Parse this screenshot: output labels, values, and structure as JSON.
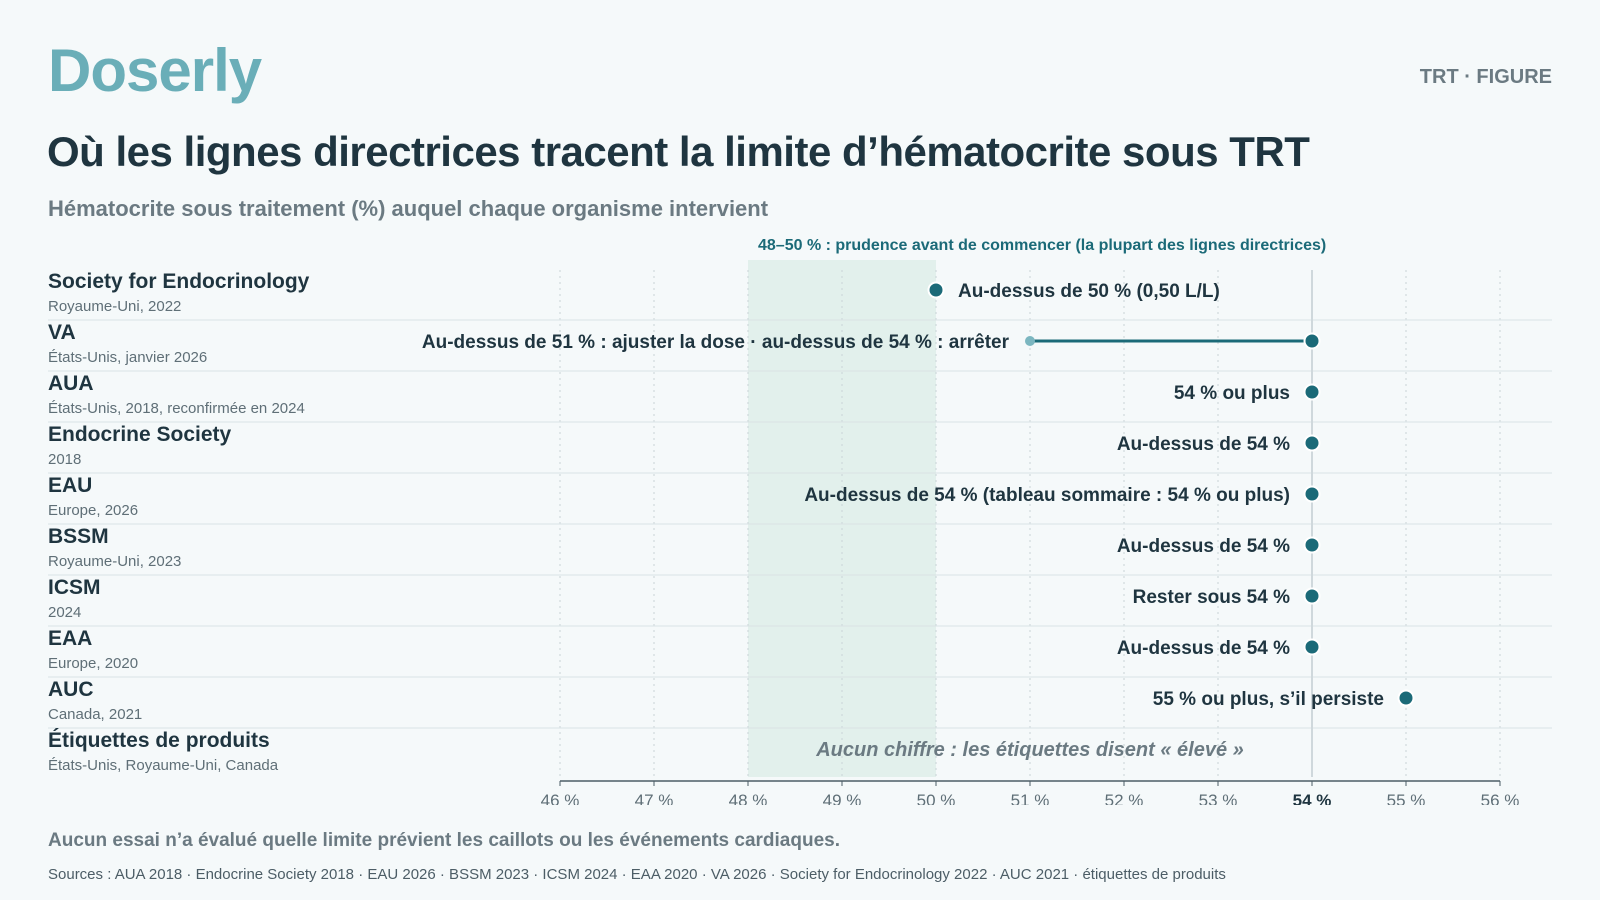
{
  "brand": "Doserly",
  "tag": "TRT · FIGURE",
  "title": "Où les lignes directrices tracent la limite d’hématocrite sous TRT",
  "subtitle": "Hématocrite sous traitement (%) auquel chaque organisme intervient",
  "footnote": "Aucun essai n’a évalué quelle limite prévient les caillots ou les événements cardiaques.",
  "sources": "Sources : AUA 2018 · Endocrine Society 2018 · EAU 2026 · BSSM 2023 · ICSM 2024 · EAA 2020 · VA 2026 · Society for Endocrinology 2022 · AUC 2021 · étiquettes de produits",
  "colors": {
    "accent": "#1b6a78",
    "accent_light": "#7bb6c0",
    "band": "#e2f0ec",
    "brand": "#6aaeb8",
    "text": "#1f3540",
    "muted": "#6b7a82"
  },
  "chart_data": {
    "type": "scatter",
    "title": "Où les lignes directrices tracent la limite d’hématocrite sous TRT",
    "xlabel": "Hématocrite sous traitement (%)",
    "xlim": [
      46,
      56
    ],
    "ticks": [
      "46 %",
      "47 %",
      "48 %",
      "49 %",
      "50 %",
      "51 %",
      "52 %",
      "53 %",
      "54 %",
      "55 %",
      "56 %"
    ],
    "highlight_tick": "54 %",
    "reference_line": 54,
    "band": {
      "from": 48,
      "to": 50,
      "label": "48–50 % : prudence avant de commencer (la plupart des lignes directrices)"
    },
    "rows": [
      {
        "name": "Society for Endocrinology",
        "detail": "Royaume-Uni, 2022",
        "value": 50,
        "label": "Au-dessus de 50 % (0,50 L/L)",
        "label_side": "right"
      },
      {
        "name": "VA",
        "detail": "États-Unis, janvier 2026",
        "value_low": 51,
        "value": 54,
        "label": "Au-dessus de 51 % : ajuster la dose · au-dessus de 54 % : arrêter",
        "label_side": "left"
      },
      {
        "name": "AUA",
        "detail": "États-Unis, 2018, reconfirmée en 2024",
        "value": 54,
        "label": "54 % ou plus",
        "label_side": "left"
      },
      {
        "name": "Endocrine Society",
        "detail": "2018",
        "value": 54,
        "label": "Au-dessus de 54 %",
        "label_side": "left"
      },
      {
        "name": "EAU",
        "detail": "Europe, 2026",
        "value": 54,
        "label": "Au-dessus de 54 % (tableau sommaire : 54 % ou plus)",
        "label_side": "left"
      },
      {
        "name": "BSSM",
        "detail": "Royaume-Uni, 2023",
        "value": 54,
        "label": "Au-dessus de 54 %",
        "label_side": "left"
      },
      {
        "name": "ICSM",
        "detail": "2024",
        "value": 54,
        "label": "Rester sous 54 %",
        "label_side": "left"
      },
      {
        "name": "EAA",
        "detail": "Europe, 2020",
        "value": 54,
        "label": "Au-dessus de 54 %",
        "label_side": "left"
      },
      {
        "name": "AUC",
        "detail": "Canada, 2021",
        "value": 55,
        "label": "55 % ou plus, s’il persiste",
        "label_side": "left"
      },
      {
        "name": "Étiquettes de produits",
        "detail": "États-Unis, Royaume-Uni, Canada",
        "value": null,
        "label": "Aucun chiffre : les étiquettes disent « élevé »",
        "label_side": "center"
      }
    ]
  }
}
